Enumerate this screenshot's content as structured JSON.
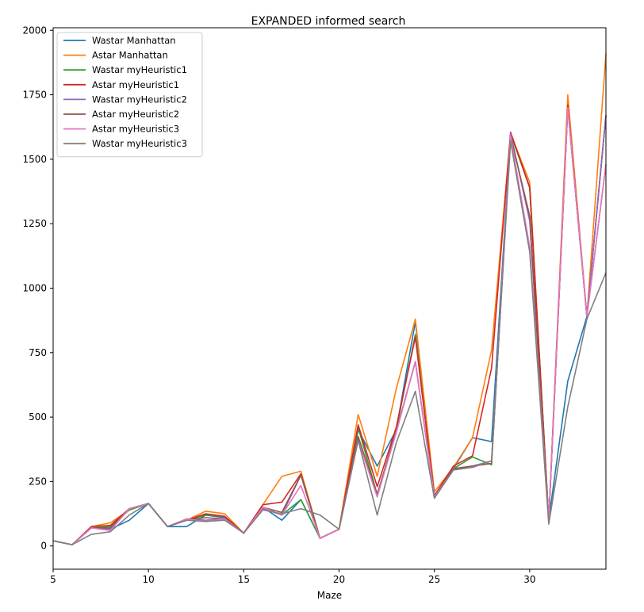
{
  "chart_data": {
    "type": "line",
    "title": "EXPANDED informed search",
    "xlabel": "Maze",
    "ylabel": "",
    "xlim": [
      5,
      34
    ],
    "ylim": [
      -90,
      2010
    ],
    "xticks": [
      5,
      10,
      15,
      20,
      25,
      30
    ],
    "yticks": [
      0,
      250,
      500,
      750,
      1000,
      1250,
      1500,
      1750,
      2000
    ],
    "grid": false,
    "legend_position": "top-left",
    "x": [
      5,
      6,
      7,
      8,
      9,
      10,
      11,
      12,
      13,
      14,
      15,
      16,
      17,
      18,
      19,
      20,
      21,
      22,
      23,
      24,
      25,
      26,
      27,
      28,
      29,
      30,
      31,
      32,
      33,
      34
    ],
    "series": [
      {
        "name": "Wastar Manhattan",
        "color": "#1f77b4",
        "values": [
          20,
          5,
          70,
          65,
          100,
          165,
          75,
          75,
          120,
          110,
          50,
          150,
          100,
          180,
          30,
          65,
          450,
          310,
          450,
          870,
          195,
          300,
          420,
          405,
          1600,
          1390,
          100,
          640,
          890,
          1670
        ]
      },
      {
        "name": "Astar Manhattan",
        "color": "#ff7f0e",
        "values": [
          20,
          5,
          75,
          90,
          140,
          165,
          75,
          100,
          135,
          125,
          50,
          160,
          270,
          290,
          30,
          65,
          510,
          270,
          610,
          880,
          210,
          305,
          420,
          760,
          1600,
          1410,
          100,
          1750,
          890,
          1910
        ]
      },
      {
        "name": "Wastar myHeuristic1",
        "color": "#2ca02c",
        "values": [
          20,
          5,
          70,
          75,
          140,
          165,
          75,
          100,
          120,
          115,
          50,
          150,
          120,
          180,
          30,
          65,
          460,
          200,
          450,
          820,
          195,
          300,
          345,
          315,
          1600,
          1390,
          100,
          1700,
          890,
          1670
        ]
      },
      {
        "name": "Astar myHeuristic1",
        "color": "#d62728",
        "values": [
          20,
          5,
          75,
          80,
          145,
          165,
          75,
          100,
          125,
          115,
          50,
          160,
          170,
          280,
          30,
          65,
          470,
          230,
          460,
          810,
          195,
          310,
          350,
          690,
          1605,
          1390,
          100,
          1710,
          890,
          1670
        ]
      },
      {
        "name": "Wastar myHeuristic2",
        "color": "#9467bd",
        "values": [
          20,
          5,
          70,
          65,
          145,
          165,
          75,
          105,
          100,
          105,
          50,
          145,
          120,
          275,
          30,
          65,
          420,
          200,
          440,
          715,
          190,
          300,
          310,
          330,
          1600,
          1260,
          100,
          1700,
          890,
          1670
        ]
      },
      {
        "name": "Astar myHeuristic2",
        "color": "#8c564b",
        "values": [
          20,
          5,
          70,
          70,
          145,
          165,
          75,
          100,
          110,
          105,
          50,
          150,
          130,
          275,
          30,
          65,
          425,
          200,
          445,
          715,
          190,
          300,
          310,
          320,
          1590,
          1280,
          100,
          1700,
          890,
          1480
        ]
      },
      {
        "name": "Astar myHeuristic3",
        "color": "#e377c2",
        "values": [
          20,
          5,
          70,
          60,
          145,
          165,
          75,
          105,
          95,
          105,
          50,
          150,
          120,
          235,
          30,
          65,
          410,
          190,
          440,
          715,
          190,
          295,
          305,
          330,
          1590,
          1160,
          100,
          1700,
          890,
          1480
        ]
      },
      {
        "name": "Wastar myHeuristic3",
        "color": "#7f7f7f",
        "values": [
          20,
          5,
          45,
          55,
          120,
          165,
          75,
          100,
          95,
          100,
          50,
          140,
          125,
          145,
          120,
          65,
          410,
          120,
          400,
          600,
          185,
          295,
          305,
          330,
          1570,
          1140,
          85,
          540,
          880,
          1060
        ]
      }
    ]
  }
}
